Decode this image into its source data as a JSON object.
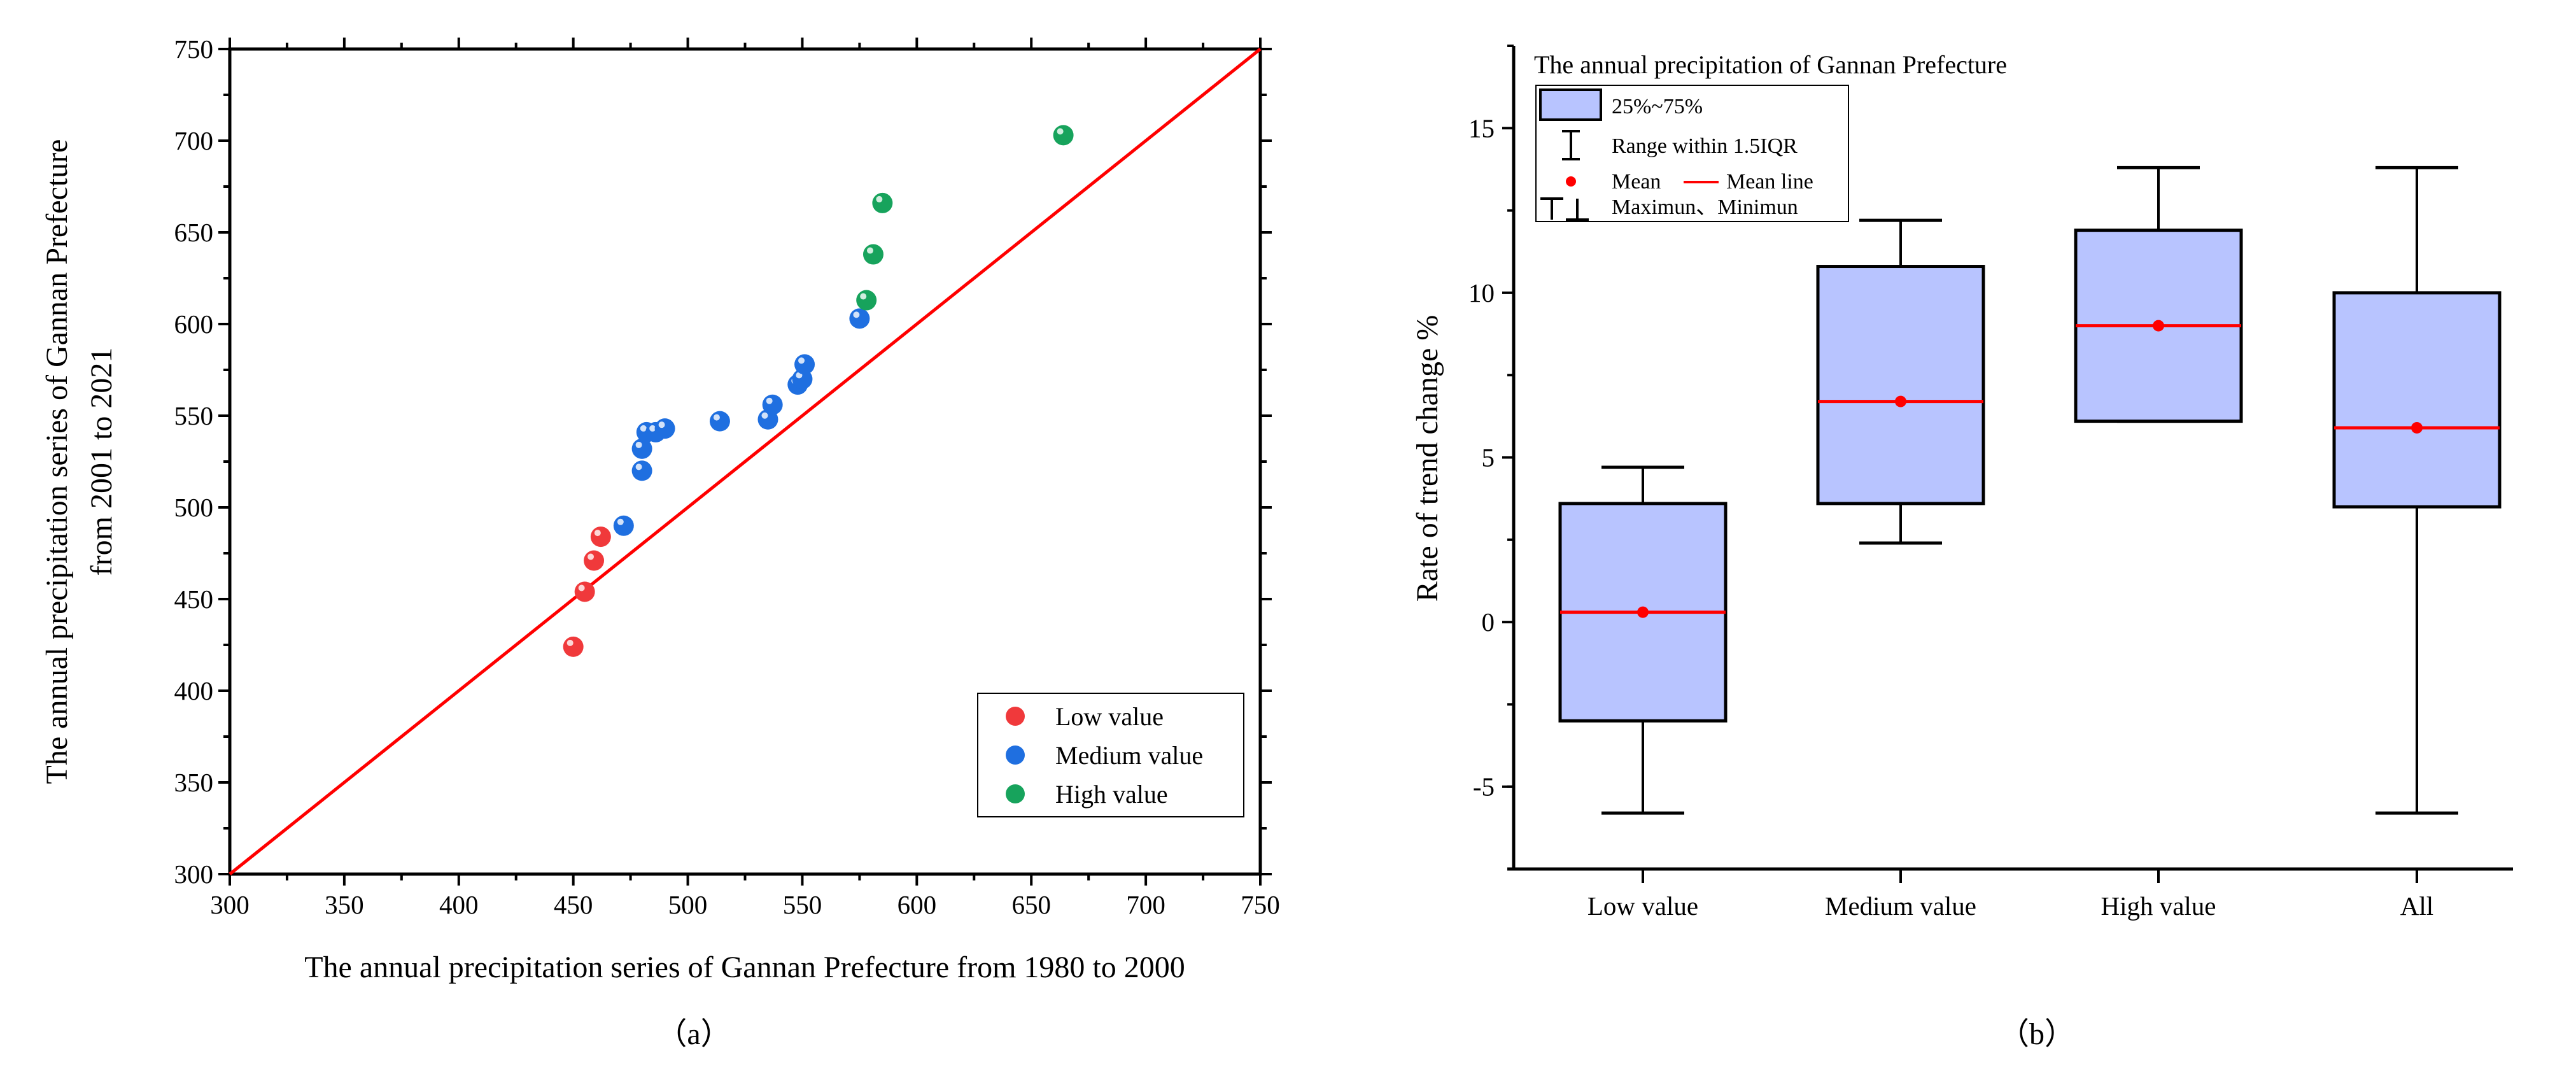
{
  "chart_data": [
    {
      "type": "scatter",
      "panel_label": "（a）",
      "xlabel": "The  annual precipitation series of Gannan Prefecture from 1980 to 2000",
      "ylabel": [
        "The  annual precipitation series of Gannan Prefecture",
        "from 2001 to 2021"
      ],
      "xlim": [
        300,
        750
      ],
      "ylim": [
        300,
        750
      ],
      "xticks": [
        300,
        350,
        400,
        450,
        500,
        550,
        600,
        650,
        700,
        750
      ],
      "yticks": [
        300,
        350,
        400,
        450,
        500,
        550,
        600,
        650,
        700,
        750
      ],
      "reference_line": {
        "name": "1:1 line",
        "from": [
          300,
          300
        ],
        "to": [
          750,
          750
        ],
        "color": "#ff0000"
      },
      "legend_position": "bottom-right",
      "series": [
        {
          "name": "Low value",
          "color": "#f0393b",
          "points": [
            [
              450,
              424
            ],
            [
              455,
              454
            ],
            [
              459,
              471
            ],
            [
              462,
              484
            ]
          ]
        },
        {
          "name": "Medium value",
          "color": "#1f6fe0",
          "points": [
            [
              472,
              490
            ],
            [
              480,
              520
            ],
            [
              480,
              532
            ],
            [
              482,
              541
            ],
            [
              486,
              541
            ],
            [
              490,
              543
            ],
            [
              514,
              547
            ],
            [
              535,
              548
            ],
            [
              537,
              556
            ],
            [
              548,
              567
            ],
            [
              550,
              570
            ],
            [
              551,
              578
            ],
            [
              575,
              603
            ]
          ]
        },
        {
          "name": "High value",
          "color": "#17a35c",
          "points": [
            [
              578,
              613
            ],
            [
              581,
              638
            ],
            [
              585,
              666
            ],
            [
              664,
              703
            ]
          ]
        }
      ]
    },
    {
      "type": "box",
      "panel_label": "（b）",
      "title": "The annual precipitation of Gannan Prefecture",
      "ylabel": "Rate of trend change %",
      "ylim": [
        -7.5,
        17.5
      ],
      "yticks": [
        -5,
        0,
        5,
        10,
        15
      ],
      "box_color": "#b8c4ff",
      "mean_color": "#ff0000",
      "legend": [
        "25%~75%",
        "Range within 1.5IQR",
        "Mean",
        "Mean line",
        "Maximun、Minimun"
      ],
      "legend_position": "top-left",
      "categories": [
        "Low value",
        "Medium value",
        "High value",
        "All"
      ],
      "boxes": [
        {
          "min": -5.8,
          "q1": -3.0,
          "mean": 0.3,
          "q3": 3.6,
          "max": 4.7
        },
        {
          "min": 2.4,
          "q1": 3.6,
          "mean": 6.7,
          "q3": 10.8,
          "max": 12.2
        },
        {
          "min": 6.1,
          "q1": 6.1,
          "mean": 9.0,
          "q3": 11.9,
          "max": 13.8
        },
        {
          "min": -5.8,
          "q1": 3.5,
          "mean": 5.9,
          "q3": 10.0,
          "max": 13.8
        }
      ]
    }
  ]
}
